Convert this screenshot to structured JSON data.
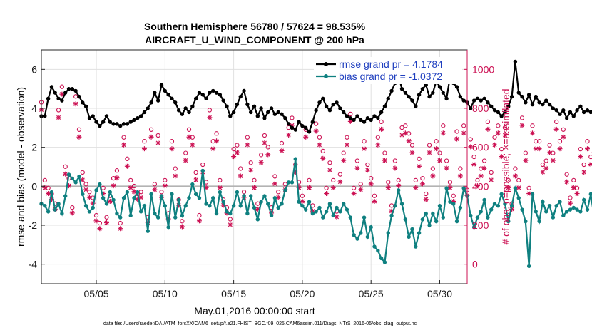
{
  "chart_data": {
    "type": "line",
    "title_line1": "Southern Hemisphere 56780 / 57624 = 98.535%",
    "title_line2": "AIRCRAFT_U_WIND_COMPONENT @ 200 hPa",
    "xlabel": "May.01,2016 00:00:00 start",
    "ylabel_left": "rmse and bias (model - observation)",
    "ylabel_right": "# of obs: o=possible; ×=assimilated",
    "footer": "data file: /Users/raeder/DAI/ATM_forcXX/CAM6_setup/f.e21.FHIST_BGC.f09_025.CAM6assim.011/Diags_NTrS_2016-05/obs_diag_output.nc",
    "x_tick_labels": [
      "05/05",
      "05/10",
      "05/15",
      "05/20",
      "05/25",
      "05/30"
    ],
    "x_tick_days": [
      5,
      10,
      15,
      20,
      25,
      30
    ],
    "xlim_days": [
      1,
      32
    ],
    "ylim_left": [
      -5,
      7
    ],
    "yticks_left": [
      "-4",
      "-2",
      "0",
      "2",
      "4",
      "6"
    ],
    "ylim_right": [
      -100,
      1100
    ],
    "yticks_right": [
      "0",
      "200",
      "400",
      "600",
      "800",
      "1000"
    ],
    "grid": true,
    "zero_line": 0,
    "legend": {
      "placement": "top-right",
      "entries": [
        "rmse grand pr = 4.1784",
        "bias grand pr = -1.0372"
      ]
    },
    "colors": {
      "rmse": "#000000",
      "bias": "#0f8080",
      "obs": "#cc1153",
      "zero_line": "#b3b3b3",
      "legend_text": "#1f3fbf"
    },
    "x_start_day": 1.0,
    "x_step_days": 0.25,
    "series": [
      {
        "name": "rmse grand pr = 4.1784",
        "axis": "left",
        "values": [
          3.6,
          3.6,
          4.5,
          5.1,
          4.8,
          4.5,
          4.4,
          4.8,
          5.0,
          5.0,
          4.9,
          4.6,
          4.3,
          4.1,
          3.5,
          3.6,
          3.3,
          3.1,
          3.3,
          3.6,
          3.3,
          3.2,
          3.2,
          3.1,
          3.2,
          3.2,
          3.3,
          3.4,
          3.5,
          3.6,
          3.8,
          4.0,
          4.3,
          4.8,
          4.4,
          5.2,
          4.9,
          4.7,
          4.5,
          4.3,
          3.9,
          3.7,
          4.0,
          3.8,
          4.1,
          4.5,
          4.8,
          4.7,
          4.5,
          4.8,
          4.9,
          4.8,
          4.7,
          4.4,
          4.1,
          3.6,
          3.8,
          4.2,
          4.6,
          4.9,
          4.2,
          3.8,
          4.1,
          3.6,
          4.0,
          3.5,
          3.8,
          4.0,
          3.7,
          3.8,
          3.7,
          3.5,
          3.2,
          3.0,
          2.9,
          3.3,
          3.1,
          3.0,
          2.8,
          3.3,
          3.9,
          4.3,
          4.5,
          4.1,
          3.9,
          4.2,
          4.3,
          4.0,
          3.8,
          3.6,
          3.5,
          3.4,
          3.6,
          3.4,
          3.3,
          3.5,
          3.4,
          3.6,
          3.5,
          3.8,
          4.1,
          4.5,
          4.9,
          5.3,
          5.7,
          5.0,
          4.8,
          4.6,
          4.4,
          4.1,
          4.7,
          5.0,
          5.2,
          4.6,
          4.8,
          5.4,
          5.1,
          4.8,
          4.5,
          5.6,
          5.3,
          5.1,
          4.6,
          4.4,
          4.3,
          4.0,
          4.4,
          4.5,
          4.4,
          4.5,
          4.3,
          4.1,
          3.9,
          3.8,
          3.6,
          3.8,
          4.1,
          4.6,
          6.4,
          4.8,
          4.6,
          4.3,
          4.7,
          4.2,
          4.6,
          4.3,
          4.2,
          4.4,
          4.2,
          4.0,
          3.9,
          3.7,
          3.9,
          3.5,
          3.8,
          3.6,
          3.9,
          4.1,
          3.8,
          3.9,
          3.8,
          4.0,
          3.7,
          3.5,
          3.3,
          3.4,
          3.2,
          3.1
        ]
      },
      {
        "name": "bias grand pr = -1.0372",
        "axis": "left",
        "values": [
          -0.9,
          -1.0,
          -1.3,
          -0.3,
          -1.2,
          -0.9,
          -1.4,
          -0.5,
          0.6,
          0.4,
          0.2,
          0.5,
          -0.4,
          -1.0,
          -1.3,
          -1.1,
          -0.2,
          0.1,
          -0.6,
          -0.9,
          -0.3,
          -0.7,
          -1.4,
          -1.6,
          -0.6,
          -0.3,
          -1.5,
          -0.6,
          -0.3,
          -1.3,
          -1.0,
          -2.3,
          -0.4,
          -1.4,
          -1.6,
          -0.5,
          -1.0,
          -2.1,
          -0.4,
          -1.6,
          -0.7,
          -1.5,
          -1.0,
          -0.6,
          0.1,
          -0.4,
          -0.6,
          0.8,
          -0.9,
          -1.0,
          -0.6,
          -1.4,
          -0.3,
          -0.8,
          -1.3,
          -1.4,
          -1.0,
          -0.3,
          -1.0,
          -0.5,
          -1.4,
          -0.5,
          -1.1,
          -1.7,
          -0.8,
          -0.5,
          -0.9,
          -1.5,
          -0.6,
          -1.1,
          -0.9,
          -0.2,
          0.2,
          0.2,
          1.4,
          -0.8,
          -1.0,
          -1.2,
          -0.8,
          -1.4,
          -1.3,
          -1.1,
          -1.6,
          -1.3,
          -0.9,
          -1.5,
          -1.1,
          -1.3,
          -0.9,
          -1.2,
          -1.6,
          -2.5,
          -2.7,
          -2.4,
          -1.6,
          -2.6,
          -2.1,
          -3.1,
          -3.3,
          -3.7,
          -3.9,
          -2.4,
          -1.5,
          -1.0,
          -0.2,
          -0.9,
          -1.7,
          -2.6,
          -2.2,
          -3.1,
          -2.4,
          -1.7,
          -1.4,
          -2.0,
          -1.4,
          -1.8,
          -1.0,
          -1.6,
          -0.1,
          -0.8,
          -0.9,
          -1.8,
          -1.1,
          -0.1,
          -0.5,
          -1.5,
          -2.1,
          -1.6,
          -1.3,
          -0.7,
          -1.6,
          -1.2,
          -0.9,
          -1.0,
          -0.4,
          -0.9,
          -1.8,
          -1.0,
          -0.1,
          -0.6,
          -1.2,
          -1.8,
          -4.1,
          -0.4,
          -1.3,
          -1.8,
          -0.8,
          -1.3,
          -1.0,
          -1.6,
          -1.0,
          -0.8,
          -1.5,
          -1.3,
          -1.2,
          -1.1,
          -1.2,
          -1.3,
          -0.7,
          -1.2,
          -0.4,
          -1.6,
          -1.1,
          -1.4,
          -2.0,
          -1.6,
          -1.9,
          -1.8,
          -2.1,
          -0.9,
          -1.1,
          -1.2
        ]
      },
      {
        "name": "possible",
        "axis": "right",
        "values": [
          820,
          420,
          380,
          350,
          300,
          780,
          900,
          490,
          430,
          280,
          850,
          680,
          460,
          400,
          360,
          330,
          240,
          200,
          380,
          230,
          340,
          430,
          470,
          200,
          640,
          530,
          420,
          390,
          350,
          360,
          620,
          230,
          680,
          400,
          650,
          360,
          420,
          250,
          620,
          480,
          320,
          210,
          560,
          680,
          640,
          460,
          240,
          500,
          410,
          780,
          620,
          660,
          420,
          320,
          280,
          220,
          580,
          600,
          480,
          360,
          640,
          510,
          420,
          300,
          550,
          650,
          590,
          280,
          440,
          360,
          610,
          400,
          690,
          740,
          500,
          410,
          340,
          680,
          420,
          290,
          710,
          640,
          570,
          380,
          510,
          420,
          260,
          450,
          560,
          640,
          760,
          380,
          520,
          400,
          620,
          500,
          430,
          340,
          640,
          720,
          560,
          410,
          290,
          520,
          420,
          690,
          700,
          660,
          600,
          420,
          530,
          430,
          350,
          600,
          480,
          620,
          560,
          700,
          520,
          410,
          340,
          670,
          480,
          700,
          370,
          630,
          540,
          420,
          480,
          520,
          720,
          460,
          640,
          700,
          580,
          690,
          420,
          300,
          480,
          420,
          740,
          560,
          380,
          700,
          620,
          620,
          500,
          520,
          600,
          560,
          720,
          620,
          680,
          450,
          330,
          420,
          380,
          580,
          500,
          620,
          540,
          600,
          320,
          420,
          460,
          400,
          810,
          820,
          800,
          720,
          740,
          400,
          210,
          0
        ]
      },
      {
        "name": "assimilated",
        "axis": "right",
        "values": [
          800,
          400,
          370,
          340,
          290,
          760,
          880,
          470,
          410,
          270,
          830,
          660,
          440,
          390,
          350,
          320,
          230,
          190,
          370,
          220,
          330,
          410,
          450,
          190,
          620,
          510,
          400,
          380,
          340,
          350,
          600,
          220,
          660,
          390,
          630,
          350,
          410,
          240,
          600,
          460,
          310,
          200,
          540,
          660,
          620,
          440,
          230,
          480,
          400,
          760,
          600,
          640,
          400,
          310,
          270,
          210,
          560,
          580,
          460,
          350,
          620,
          490,
          400,
          290,
          530,
          630,
          570,
          270,
          420,
          350,
          590,
          390,
          670,
          720,
          480,
          400,
          330,
          660,
          400,
          280,
          690,
          620,
          550,
          370,
          490,
          400,
          250,
          430,
          540,
          620,
          740,
          370,
          500,
          390,
          600,
          490,
          420,
          330,
          620,
          700,
          540,
          400,
          280,
          500,
          410,
          670,
          680,
          640,
          580,
          400,
          510,
          420,
          340,
          580,
          460,
          600,
          540,
          680,
          500,
          400,
          330,
          650,
          460,
          680,
          360,
          610,
          520,
          410,
          460,
          500,
          700,
          440,
          620,
          680,
          560,
          670,
          400,
          290,
          460,
          400,
          720,
          540,
          370,
          680,
          600,
          600,
          480,
          500,
          580,
          540,
          700,
          600,
          660,
          430,
          320,
          400,
          370,
          560,
          480,
          600,
          520,
          580,
          310,
          400,
          440,
          390,
          790,
          800,
          780,
          700,
          720,
          390,
          200,
          0
        ]
      }
    ]
  }
}
